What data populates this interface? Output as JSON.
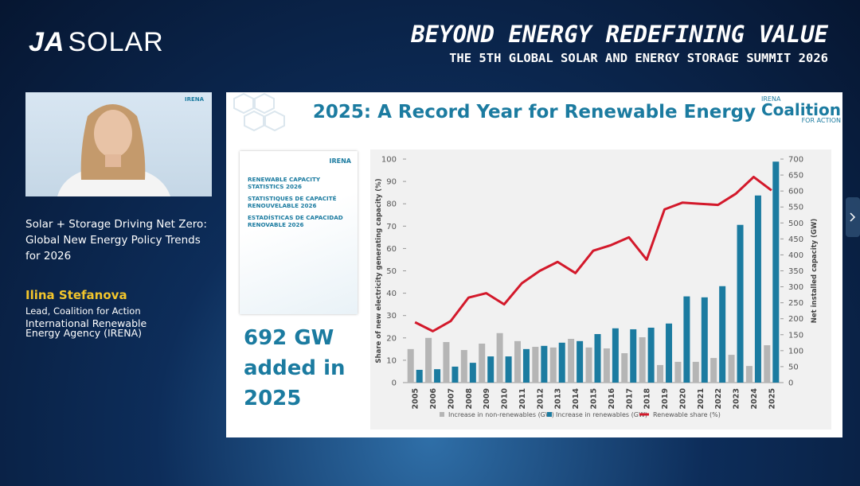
{
  "header": {
    "logo_ja": "JA",
    "logo_solar": "SOLAR",
    "title": "BEYOND ENERGY  REDEFINING VALUE",
    "subtitle": "THE 5TH GLOBAL SOLAR AND ENERGY STORAGE SUMMIT 2026"
  },
  "webcam": {
    "badge": "IRENA"
  },
  "session": {
    "title_lines": [
      "Solar + Storage Driving Net Zero:",
      "Global New Energy Policy Trends",
      "for 2026"
    ]
  },
  "speaker": {
    "name": "Ilina Stefanova",
    "role": "Lead, Coalition for Action",
    "org_lines": [
      "International Renewable",
      "Energy Agency (IRENA)"
    ]
  },
  "slide": {
    "title": "2025: A Record Year for Renewable Energy",
    "logo": {
      "top": "IRENA",
      "main": "Coalition",
      "sub": "FOR ACTION"
    },
    "report": {
      "brand": "IRENA",
      "titles": [
        "RENEWABLE CAPACITY STATISTICS 2026",
        "STATISTIQUES DE CAPACITÉ RENOUVELABLE 2026",
        "ESTADÍSTICAS DE CAPACIDAD RENOVABLE 2026"
      ]
    },
    "callout": [
      "692 GW",
      "added in",
      "2025"
    ]
  },
  "chart_data": {
    "type": "bar",
    "categories": [
      "2005",
      "2006",
      "2007",
      "2008",
      "2009",
      "2010",
      "2011",
      "2012",
      "2013",
      "2014",
      "2015",
      "2016",
      "2017",
      "2018",
      "2019",
      "2020",
      "2021",
      "2022",
      "2023",
      "2024",
      "2025"
    ],
    "series": [
      {
        "name": "Increase in non-renewables (GW)",
        "color": "#b5b5b5",
        "axis": "y2",
        "values": [
          105,
          140,
          127,
          102,
          122,
          155,
          130,
          112,
          110,
          137,
          110,
          107,
          92,
          142,
          55,
          65,
          65,
          77,
          87,
          52,
          117
        ]
      },
      {
        "name": "Increase in renewables (GW)",
        "color": "#1b7ba0",
        "axis": "y2",
        "values": [
          40,
          42,
          50,
          62,
          82,
          82,
          105,
          115,
          125,
          130,
          152,
          170,
          167,
          172,
          185,
          270,
          267,
          302,
          494,
          586,
          692
        ]
      },
      {
        "name": "Renewable share (%)",
        "color": "#d3192b",
        "type": "line",
        "values": [
          27,
          23,
          27.5,
          38,
          40,
          35,
          44.5,
          50,
          54,
          49,
          59,
          61.5,
          65,
          55,
          77.5,
          80.5,
          80,
          79.5,
          84.5,
          92,
          86
        ]
      }
    ],
    "ylabel": "Share of new electricity generating capacity (%)",
    "y2label": "Net installed capacity (GW)",
    "ylim": [
      0,
      100
    ],
    "yticks": [
      0,
      10,
      20,
      30,
      40,
      50,
      60,
      70,
      80,
      90,
      100
    ],
    "y2lim": [
      0,
      700
    ],
    "y2ticks": [
      0,
      50,
      100,
      150,
      200,
      250,
      300,
      350,
      400,
      450,
      500,
      550,
      600,
      650,
      700
    ]
  }
}
